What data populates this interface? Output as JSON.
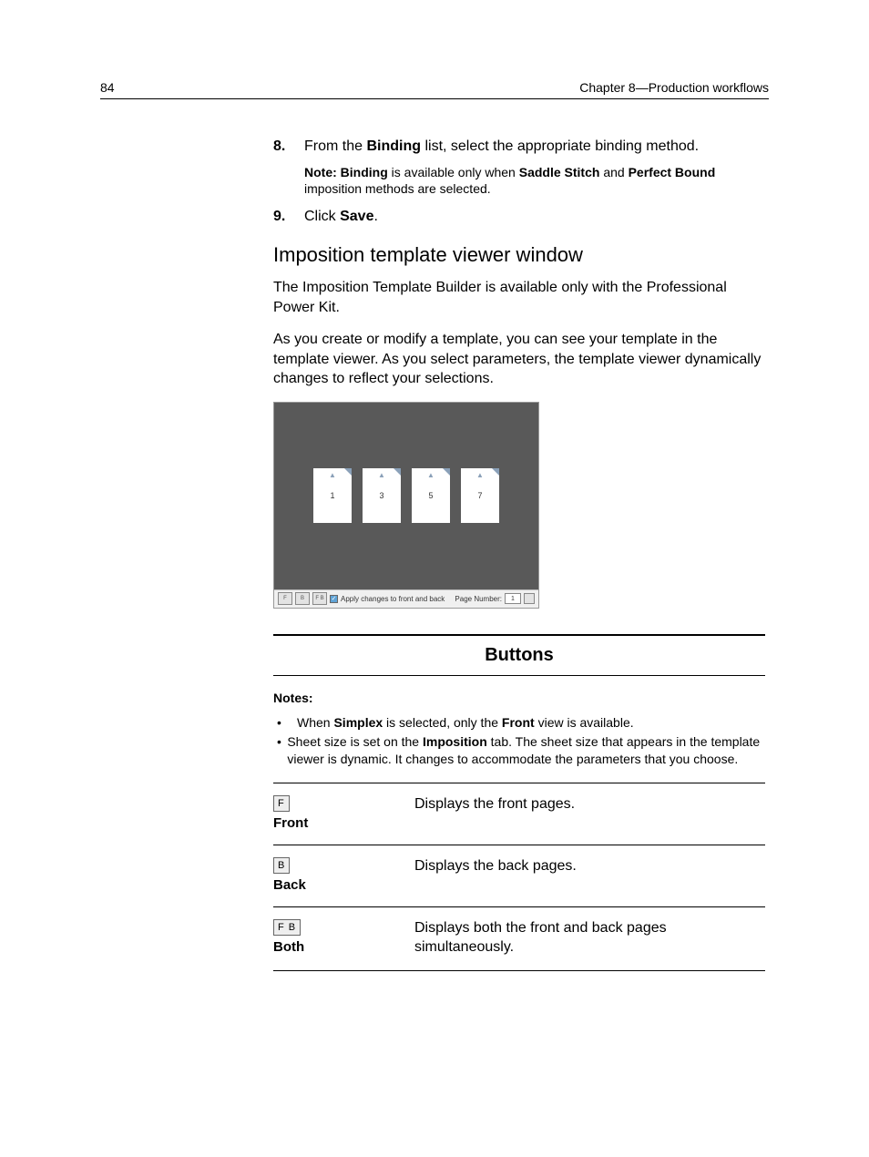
{
  "header": {
    "page_number": "84",
    "chapter": "Chapter 8—Production workflows"
  },
  "steps": {
    "s8": {
      "num": "8.",
      "pre": "From the ",
      "bold1": "Binding",
      "post": " list, select the appropriate binding method."
    },
    "s8note": {
      "pre": "Note: Binding",
      "mid1": " is available only when ",
      "bold2": "Saddle Stitch",
      "mid2": " and ",
      "bold3": "Perfect Bound",
      "post": " imposition methods are selected."
    },
    "s9": {
      "num": "9.",
      "pre": "Click ",
      "bold1": "Save",
      "post": "."
    }
  },
  "section_heading": "Imposition template viewer window",
  "paras": {
    "p1": "The Imposition Template Builder is available only with the Professional Power Kit.",
    "p2": "As you create or modify a template, you can see your template in the template viewer. As you select parameters, the template viewer dynamically changes to reflect your selections."
  },
  "viewer": {
    "sheets": [
      "1",
      "3",
      "5",
      "7"
    ],
    "toolbar": {
      "icons": [
        "F",
        "B",
        "F B"
      ],
      "check_label": "Apply changes to front and back",
      "page_label": "Page Number:",
      "page_value": "1"
    }
  },
  "buttons_section": {
    "title": "Buttons",
    "notes_label": "Notes:",
    "bullets": {
      "b1_pre": "When ",
      "b1_bold1": "Simplex",
      "b1_mid": " is selected, only the ",
      "b1_bold2": "Front",
      "b1_post": " view is available.",
      "b2_pre": "Sheet size is set on the ",
      "b2_bold": "Imposition",
      "b2_post": " tab. The sheet size that appears in the template viewer is dynamic. It changes to accommodate the parameters that you choose."
    },
    "rows": [
      {
        "icon": "F",
        "label": "Front",
        "desc": "Displays the front pages."
      },
      {
        "icon": "B",
        "label": "Back",
        "desc": "Displays the back pages."
      },
      {
        "icon": "F B",
        "label": "Both",
        "desc": "Displays both the front and back pages simultaneously."
      }
    ]
  }
}
